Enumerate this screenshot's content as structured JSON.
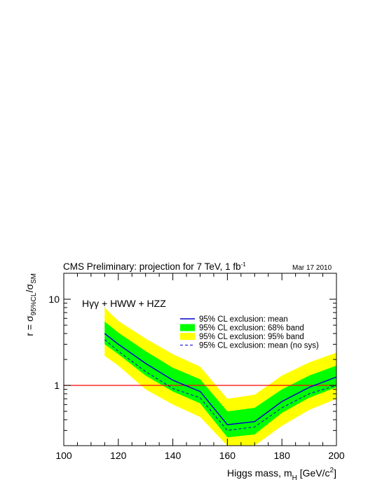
{
  "chart_data": {
    "type": "area",
    "title": "CMS Preliminary: projection for 7 TeV, 1 fb",
    "title_superscript": "-1",
    "date": "Mar 17 2010",
    "process_label": "Hγγ + HWW + HZZ",
    "xlabel": "Higgs mass, m",
    "xlabel_sub": "H",
    "xlabel_unit": "[GeV/c",
    "xlabel_unit_sup": "2",
    "xlabel_unit_close": "]",
    "ylabel_prefix": "r = σ",
    "ylabel_sub1": "95%CL",
    "ylabel_mid": "/σ",
    "ylabel_sub2": "SM",
    "xlim": [
      100,
      200
    ],
    "ylim": [
      0.2,
      20
    ],
    "yscale": "log",
    "x_ticks": [
      100,
      120,
      140,
      160,
      180,
      200
    ],
    "x_tick_labels": [
      "100",
      "120",
      "140",
      "160",
      "180",
      "200"
    ],
    "y_ticks": [
      1,
      10
    ],
    "y_tick_labels": [
      "1",
      "10"
    ],
    "reference_line": 1,
    "x": [
      115,
      120,
      130,
      140,
      150,
      160,
      170,
      180,
      190,
      200
    ],
    "series": [
      {
        "name": "95% CL exclusion: mean",
        "style": "solid",
        "color": "#0000cc",
        "values": [
          4.0,
          3.0,
          1.8,
          1.15,
          0.85,
          0.35,
          0.38,
          0.65,
          0.95,
          1.25
        ]
      },
      {
        "name": "95% CL exclusion: 68% band",
        "style": "band",
        "color": "#00ff00",
        "low": [
          3.0,
          2.3,
          1.3,
          0.85,
          0.62,
          0.25,
          0.27,
          0.48,
          0.72,
          0.95
        ],
        "high": [
          5.5,
          4.1,
          2.5,
          1.6,
          1.18,
          0.5,
          0.55,
          0.9,
          1.3,
          1.7
        ]
      },
      {
        "name": "95% CL exclusion: 95% band",
        "style": "band",
        "color": "#ffff00",
        "low": [
          2.2,
          1.7,
          0.9,
          0.6,
          0.43,
          0.17,
          0.19,
          0.34,
          0.52,
          0.7
        ],
        "high": [
          8.0,
          5.6,
          3.5,
          2.3,
          1.65,
          0.7,
          0.78,
          1.3,
          1.85,
          2.4
        ]
      },
      {
        "name": "95% CL exclusion: mean (no sys)",
        "style": "dashed",
        "color": "#0000cc",
        "values": [
          3.4,
          2.5,
          1.45,
          0.92,
          0.72,
          0.3,
          0.33,
          0.55,
          0.8,
          1.0
        ]
      }
    ],
    "reference_color": "#ff0000",
    "legend_position": "top-right",
    "grid": false
  }
}
